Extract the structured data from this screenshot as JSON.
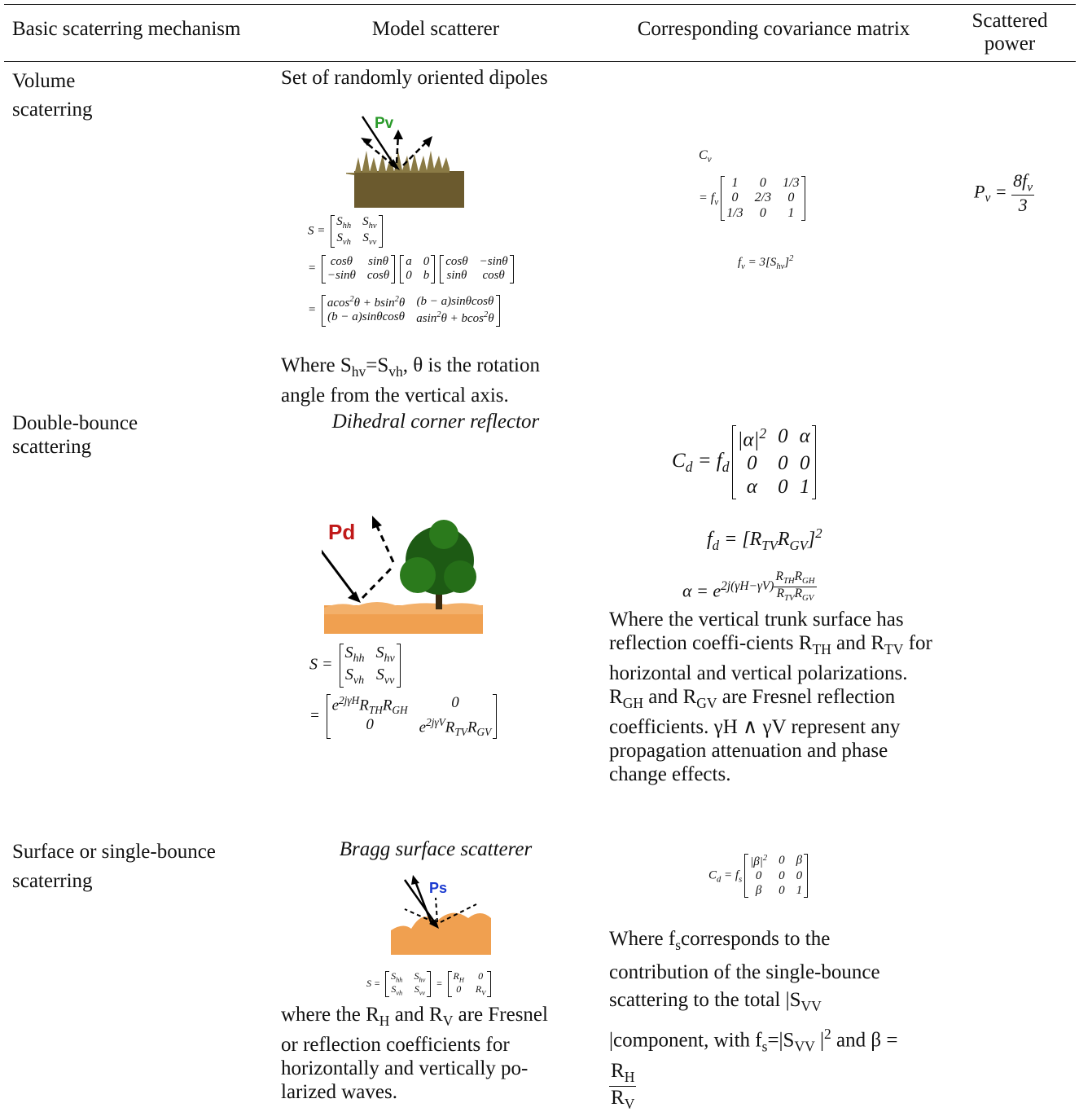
{
  "table": {
    "headers": [
      "Basic scaterring mechanism",
      "Model scatterer",
      "Corresponding covariance matrix",
      "Scattered power"
    ],
    "rows": [
      {
        "mechanism": "Volume scaterring",
        "model_title": "Set of randomly oriented dipoles",
        "figure_label": "Pv",
        "model_eqs": [
          [
            "S = ",
            {
              "matrix": [
                [
                  [
                    "S",
                    {
                      "sub": "hh"
                    }
                  ],
                  [
                    "S",
                    {
                      "sub": "hv"
                    }
                  ]
                ],
                [
                  [
                    "S",
                    {
                      "sub": "vh"
                    }
                  ],
                  [
                    "S",
                    {
                      "sub": "vv"
                    }
                  ]
                ]
              ]
            }
          ],
          [
            "= ",
            {
              "matrix": [
                [
                  "cosθ",
                  "sinθ"
                ],
                [
                  "−sinθ",
                  "cosθ"
                ]
              ]
            },
            {
              "matrix": [
                [
                  "a",
                  "0"
                ],
                [
                  "0",
                  "b"
                ]
              ]
            },
            {
              "matrix": [
                [
                  "cosθ",
                  "−sinθ"
                ],
                [
                  "sinθ",
                  "cosθ"
                ]
              ]
            }
          ],
          [
            "= ",
            {
              "matrix": [
                [
                  [
                    "acos",
                    {
                      "sup": "2"
                    },
                    "θ + bsin",
                    {
                      "sup": "2"
                    },
                    "θ"
                  ],
                  "(b − a)sinθcosθ"
                ],
                [
                  "(b − a)sinθcosθ",
                  [
                    "asin",
                    {
                      "sup": "2"
                    },
                    "θ + bcos",
                    {
                      "sup": "2"
                    },
                    "θ"
                  ]
                ]
              ]
            }
          ]
        ],
        "model_note": [
          "Where S",
          {
            "sub": "hv"
          },
          "=S",
          {
            "sub": "vh"
          },
          ", θ is the rotation angle from the vertical axis."
        ],
        "cov_eqs": [
          [
            "C",
            {
              "sub": "v"
            }
          ],
          [
            "= f",
            {
              "sub": "v"
            },
            {
              "matrix": [
                [
                  "1",
                  "0",
                  "1/3"
                ],
                [
                  "0",
                  "2/3",
                  "0"
                ],
                [
                  "1/3",
                  "0",
                  "1"
                ]
              ]
            }
          ],
          [
            "f",
            {
              "sub": "v"
            },
            " = 3[S",
            {
              "sub": "hv"
            },
            "]",
            {
              "sup": "2"
            }
          ]
        ],
        "power": [
          "P",
          {
            "sub": "v"
          },
          " = ",
          {
            "frac": [
              [
                "8f",
                {
                  "sub": "v"
                }
              ],
              "3"
            ]
          }
        ]
      },
      {
        "mechanism": "Double-bounce scattering",
        "model_title": "Dihedral corner reflector",
        "figure_label": "Pd",
        "model_eqs": [
          [
            "S = ",
            {
              "matrix": [
                [
                  [
                    "S",
                    {
                      "sub": "hh"
                    }
                  ],
                  [
                    "S",
                    {
                      "sub": "hv"
                    }
                  ]
                ],
                [
                  [
                    "S",
                    {
                      "sub": "vh"
                    }
                  ],
                  [
                    "S",
                    {
                      "sub": "vv"
                    }
                  ]
                ]
              ]
            }
          ],
          [
            "= ",
            {
              "matrix": [
                [
                  [
                    "e",
                    {
                      "sup": "2jγH"
                    },
                    "R",
                    {
                      "sub": "TH"
                    },
                    "R",
                    {
                      "sub": "GH"
                    }
                  ],
                  "0"
                ],
                [
                  "0",
                  [
                    "e",
                    {
                      "sup": "2jγV"
                    },
                    "R",
                    {
                      "sub": "TV"
                    },
                    "R",
                    {
                      "sub": "GV"
                    }
                  ]
                ]
              ]
            }
          ]
        ],
        "cov_eqs": [
          [
            "C",
            {
              "sub": "d"
            },
            " = f",
            {
              "sub": "d"
            },
            {
              "matrix": [
                [
                  [
                    "|α|",
                    {
                      "sup": "2"
                    }
                  ],
                  "0",
                  "α"
                ],
                [
                  "0",
                  "0",
                  "0"
                ],
                [
                  "α",
                  "0",
                  "1"
                ]
              ]
            }
          ],
          [
            "f",
            {
              "sub": "d"
            },
            " = [R",
            {
              "sub": "TV"
            },
            "R",
            {
              "sub": "GV"
            },
            "]",
            {
              "sup": "2"
            }
          ],
          [
            "α = e",
            {
              "sup": [
                "2j(γH−γV)",
                {
                  "frac": [
                    [
                      "R",
                      {
                        "sub": "TH"
                      },
                      "R",
                      {
                        "sub": "GH"
                      }
                    ],
                    [
                      "R",
                      {
                        "sub": "TV"
                      },
                      "R",
                      {
                        "sub": "GV"
                      }
                    ]
                  ]
                }
              ]
            }
          ]
        ],
        "cov_note": [
          "Where the vertical trunk surface has reflection coeffi-cients R",
          {
            "sub": "TH"
          },
          " and R",
          {
            "sub": "TV"
          },
          " for horizontal and vertical polarizations. R",
          {
            "sub": "GH"
          },
          " and R",
          {
            "sub": "GV"
          },
          " are Fresnel reflection coefficients. γH ∧ γV represent any propagation attenuation and phase change effects."
        ]
      },
      {
        "mechanism": "Surface or single-bounce scaterring",
        "model_title": "Bragg surface scatterer",
        "figure_label": "Ps",
        "model_eqs": [
          [
            "S = ",
            {
              "matrix": [
                [
                  [
                    "S",
                    {
                      "sub": "hh"
                    }
                  ],
                  [
                    "S",
                    {
                      "sub": "hv"
                    }
                  ]
                ],
                [
                  [
                    "S",
                    {
                      "sub": "vh"
                    }
                  ],
                  [
                    "S",
                    {
                      "sub": "vv"
                    }
                  ]
                ]
              ]
            },
            " = ",
            {
              "matrix": [
                [
                  [
                    "R",
                    {
                      "sub": "H"
                    }
                  ],
                  "0"
                ],
                [
                  "0",
                  [
                    "R",
                    {
                      "sub": "V"
                    }
                  ]
                ]
              ]
            }
          ]
        ],
        "model_note": [
          "where the R",
          {
            "sub": "H"
          },
          " and R",
          {
            "sub": "V"
          },
          " are Fresnel or reflection coefficients for horizontally and vertically po-larized waves."
        ],
        "cov_eqs": [
          [
            "C",
            {
              "sub": "d"
            },
            " = f",
            {
              "sub": "s"
            },
            {
              "matrix": [
                [
                  [
                    "|β|",
                    {
                      "sup": "2"
                    }
                  ],
                  "0",
                  "β"
                ],
                [
                  "0",
                  "0",
                  "0"
                ],
                [
                  "β",
                  "0",
                  "1"
                ]
              ]
            }
          ]
        ],
        "cov_note": [
          "Where f",
          {
            "sub": "s"
          },
          "corresponds to the contribution of the single-bounce scattering to the total |S",
          {
            "sub": "VV"
          },
          " |component, with f",
          {
            "sub": "s"
          },
          "=|S",
          {
            "sub": "VV"
          },
          " |",
          {
            "sup": "2"
          },
          " and β = ",
          {
            "frac": [
              [
                "R",
                {
                  "sub": "H"
                }
              ],
              [
                "R",
                {
                  "sub": "V"
                }
              ]
            ]
          }
        ]
      }
    ]
  }
}
